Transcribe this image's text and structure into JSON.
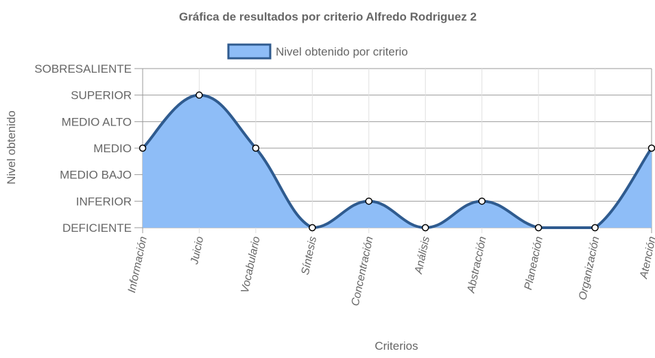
{
  "chart_data": {
    "type": "area",
    "title": "Gráfica de resultados por criterio Alfredo Rodriguez 2",
    "xlabel": "Criterios",
    "ylabel": "Nivel obtenido",
    "y_levels": [
      "DEFICIENTE",
      "INFERIOR",
      "MEDIO BAJO",
      "MEDIO",
      "MEDIO ALTO",
      "SUPERIOR",
      "SOBRESALIENTE"
    ],
    "categories": [
      "Información",
      "Juicio",
      "Vocabulario",
      "Síntesis",
      "Concentración",
      "Análisis",
      "Abstracción",
      "Planeación",
      "Organización",
      "Atención"
    ],
    "series": [
      {
        "name": "Nivel obtenido por criterio",
        "values": [
          "MEDIO",
          "SUPERIOR",
          "MEDIO",
          "DEFICIENTE",
          "INFERIOR",
          "DEFICIENTE",
          "INFERIOR",
          "DEFICIENTE",
          "DEFICIENTE",
          "MEDIO"
        ],
        "fill_color": "#8ebdf7",
        "line_color": "#2f5b8f"
      }
    ],
    "legend_position": "top",
    "grid": true
  }
}
